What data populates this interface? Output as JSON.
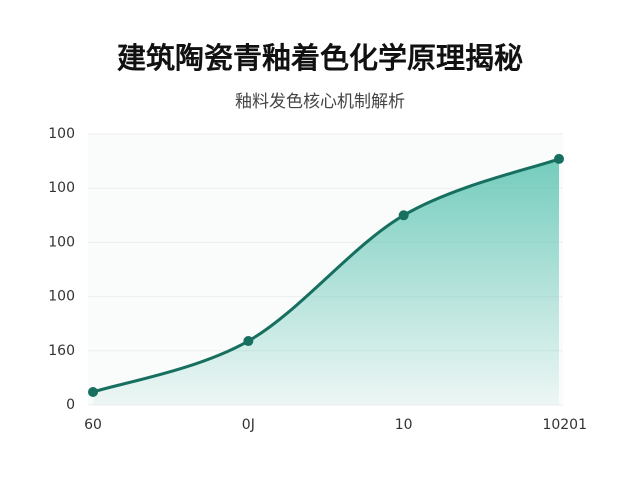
{
  "chart_data": {
    "type": "area",
    "title": "建筑陶瓷青釉着色化学原理揭秘",
    "subtitle": "釉料发色核心机制解析",
    "categories": [
      "60",
      "0J",
      "10",
      "10201"
    ],
    "values": [
      0.24,
      1.18,
      3.5,
      4.54
    ],
    "color": "#17705f",
    "fill_color": "#5cc4b2",
    "ylim": [
      0,
      5
    ],
    "yticks": [
      0,
      {
        "value": 1,
        "label": "160"
      },
      {
        "value": 2,
        "label": "100"
      },
      {
        "value": 3,
        "label": "100"
      },
      {
        "value": 4,
        "label": "100"
      },
      {
        "value": 5,
        "label": "100"
      }
    ],
    "grid": true
  }
}
